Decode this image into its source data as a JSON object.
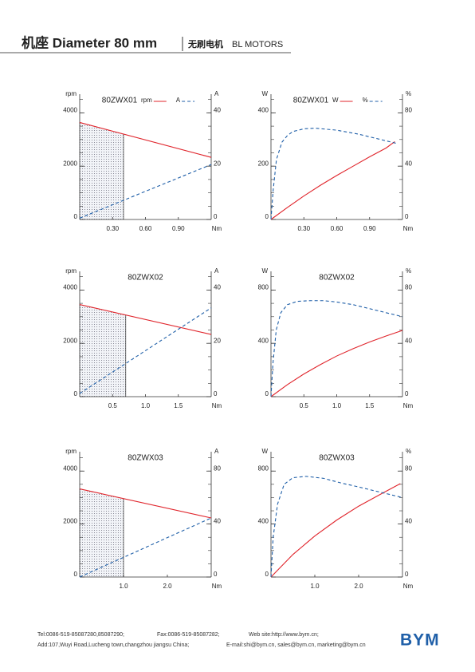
{
  "header": {
    "title": "机座 Diameter 80 mm",
    "subtitle_cn": "无刷电机",
    "subtitle_en": "BL MOTORS"
  },
  "chart_data": [
    {
      "type": "line",
      "title": "80ZWX01",
      "ylabel": "rpm",
      "y2label": "A",
      "xlabel": "Nm",
      "xlim": [
        0,
        1.2
      ],
      "xticks": [
        {
          "value": 0.3,
          "label": "0.30"
        },
        {
          "value": 0.6,
          "label": "0.60"
        },
        {
          "value": 0.9,
          "label": "0.90"
        }
      ],
      "ylim": [
        0,
        4700
      ],
      "yticks": [
        0,
        2000,
        4000
      ],
      "y2lim": [
        0,
        47
      ],
      "y2ticks": [
        0,
        20,
        40
      ],
      "shade": 0.4,
      "legend": true,
      "series": [
        {
          "name": "rpm",
          "color": "#e0242b",
          "dash": false,
          "x": [
            0,
            1.2
          ],
          "values": [
            3640,
            2330
          ]
        },
        {
          "name": "A",
          "color": "#1f5fa8",
          "dash": true,
          "axis": "y2",
          "x": [
            0,
            1.2
          ],
          "values": [
            0.5,
            20.6
          ]
        }
      ]
    },
    {
      "type": "line",
      "title": "80ZWX01",
      "ylabel": "W",
      "y2label": "%",
      "xlabel": "Nm",
      "xlim": [
        0,
        1.2
      ],
      "xticks": [
        {
          "value": 0.3,
          "label": "0.30"
        },
        {
          "value": 0.6,
          "label": "0.60"
        },
        {
          "value": 0.9,
          "label": "0.90"
        }
      ],
      "ylim": [
        0,
        470
      ],
      "yticks": [
        0,
        200,
        400
      ],
      "y2lim": [
        0,
        94
      ],
      "y2ticks": [
        0,
        40,
        80
      ],
      "legend": true,
      "series": [
        {
          "name": "W",
          "color": "#e0242b",
          "dash": false,
          "x": [
            0,
            0.15,
            0.3,
            0.45,
            0.6,
            0.75,
            0.9,
            1.05,
            1.13
          ],
          "values": [
            0,
            45,
            88,
            128,
            165,
            200,
            235,
            268,
            292
          ]
        },
        {
          "name": "%",
          "color": "#1f5fa8",
          "dash": true,
          "axis": "y2",
          "x": [
            0,
            0.02,
            0.05,
            0.1,
            0.15,
            0.2,
            0.3,
            0.4,
            0.6,
            0.8,
            1.0,
            1.15
          ],
          "values": [
            0,
            22,
            45,
            58,
            63,
            66,
            68,
            68.5,
            67,
            64,
            60,
            57
          ]
        }
      ]
    },
    {
      "type": "line",
      "title": "80ZWX02",
      "ylabel": "rpm",
      "y2label": "A",
      "xlabel": "Nm",
      "xlim": [
        0,
        2
      ],
      "xticks": [
        0.5,
        {
          "value": 1,
          "label": "1.0"
        },
        1.5
      ],
      "ylim": [
        0,
        4700
      ],
      "yticks": [
        0,
        2000,
        4000
      ],
      "y2lim": [
        0,
        47
      ],
      "y2ticks": [
        0,
        20,
        40
      ],
      "shade": 0.7,
      "legend": false,
      "series": [
        {
          "color": "#e0242b",
          "dash": false,
          "x": [
            0,
            2
          ],
          "values": [
            3455,
            2333
          ]
        },
        {
          "color": "#1f5fa8",
          "dash": true,
          "axis": "y2",
          "x": [
            0,
            2
          ],
          "values": [
            1.2,
            33.3
          ]
        }
      ]
    },
    {
      "type": "line",
      "title": "80ZWX02",
      "ylabel": "W",
      "y2label": "%",
      "xlabel": "Nm",
      "xlim": [
        0,
        2
      ],
      "xticks": [
        0.5,
        {
          "value": 1,
          "label": "1.0"
        },
        1.5
      ],
      "ylim": [
        0,
        940
      ],
      "yticks": [
        0,
        400,
        800
      ],
      "y2lim": [
        0,
        94
      ],
      "y2ticks": [
        0,
        40,
        80
      ],
      "legend": false,
      "series": [
        {
          "color": "#e0242b",
          "dash": false,
          "x": [
            0,
            0.25,
            0.5,
            0.75,
            1.0,
            1.25,
            1.5,
            1.75,
            2.0
          ],
          "values": [
            0,
            90,
            170,
            240,
            305,
            360,
            410,
            455,
            497
          ]
        },
        {
          "color": "#1f5fa8",
          "dash": true,
          "axis": "y2",
          "x": [
            0,
            0.03,
            0.08,
            0.15,
            0.25,
            0.4,
            0.6,
            0.8,
            1.0,
            1.25,
            1.5,
            1.75,
            2.0
          ],
          "values": [
            0,
            25,
            50,
            63,
            69,
            71.5,
            72,
            72,
            71,
            69,
            66,
            63,
            60
          ]
        }
      ]
    },
    {
      "type": "line",
      "title": "80ZWX03",
      "ylabel": "rpm",
      "y2label": "A",
      "xlabel": "Nm",
      "xlim": [
        0,
        3
      ],
      "xticks": [
        {
          "value": 1,
          "label": "1.0"
        },
        {
          "value": 2,
          "label": "2.0"
        }
      ],
      "ylim": [
        0,
        4730
      ],
      "yticks": [
        0,
        2000,
        4000
      ],
      "y2lim": [
        0,
        94.6
      ],
      "y2ticks": [
        0,
        40,
        80
      ],
      "shade": 1.0,
      "legend": false,
      "series": [
        {
          "color": "#e0242b",
          "dash": false,
          "x": [
            0,
            3
          ],
          "values": [
            3328,
            2229
          ]
        },
        {
          "color": "#1f5fa8",
          "dash": true,
          "axis": "y2",
          "x": [
            0,
            3
          ],
          "values": [
            0,
            44.6
          ]
        }
      ]
    },
    {
      "type": "line",
      "title": "80ZWX03",
      "ylabel": "W",
      "y2label": "%",
      "xlabel": "Nm",
      "xlim": [
        0,
        3
      ],
      "xticks": [
        {
          "value": 1,
          "label": "1.0"
        },
        {
          "value": 2,
          "label": "2.0"
        }
      ],
      "ylim": [
        0,
        946
      ],
      "yticks": [
        0,
        400,
        800
      ],
      "y2lim": [
        0,
        94.6
      ],
      "y2ticks": [
        0,
        40,
        80
      ],
      "legend": false,
      "series": [
        {
          "color": "#e0242b",
          "dash": false,
          "x": [
            0,
            0.5,
            1.0,
            1.5,
            2.0,
            2.5,
            2.95
          ],
          "values": [
            0,
            170,
            310,
            430,
            535,
            625,
            705
          ]
        },
        {
          "color": "#1f5fa8",
          "dash": true,
          "axis": "y2",
          "x": [
            0,
            0.05,
            0.15,
            0.3,
            0.5,
            0.8,
            1.2,
            1.6,
            2.0,
            2.5,
            3.0
          ],
          "values": [
            0,
            30,
            55,
            70,
            75,
            76,
            74.5,
            71,
            68,
            64,
            60
          ]
        }
      ]
    }
  ],
  "footer": {
    "tel": "Tel:0086-519-85087280,85087290;",
    "fax": "Fax:0086-519-85087282;",
    "web": "Web site:http://www.bym.cn;",
    "address": "Add:107,Wuyi Road,Lucheng town,changzhou jiangsu China;",
    "email": "E-mail:shi@bym.cn, sales@bym.cn, marketing@bym.cn",
    "logo": "BYM"
  }
}
